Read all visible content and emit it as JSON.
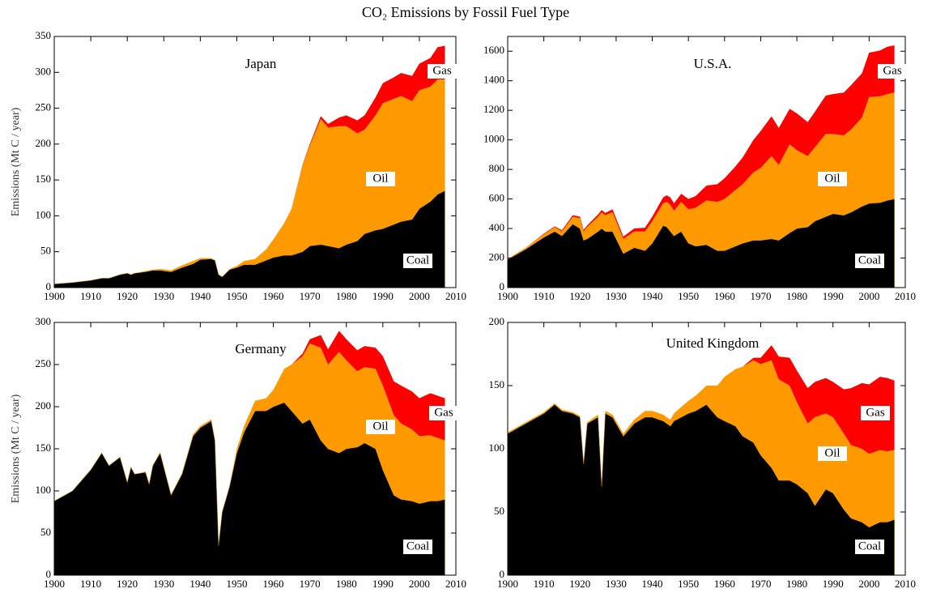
{
  "title": "CO₂ Emissions by Fossil Fuel Type",
  "chart_data": [
    {
      "type": "stacked-area",
      "title": "Japan",
      "y_label": "Emissions (Mt C / year)",
      "x": [
        1900,
        1905,
        1910,
        1913,
        1915,
        1918,
        1920,
        1921,
        1922,
        1925,
        1926,
        1927,
        1929,
        1932,
        1935,
        1938,
        1940,
        1943,
        1944,
        1945,
        1946,
        1948,
        1950,
        1952,
        1955,
        1958,
        1960,
        1963,
        1965,
        1968,
        1970,
        1973,
        1975,
        1978,
        1980,
        1983,
        1985,
        1988,
        1990,
        1993,
        1995,
        1998,
        2000,
        2003,
        2005,
        2007
      ],
      "series": [
        {
          "name": "Coal",
          "color": "#000000",
          "values": [
            5,
            7,
            10,
            13,
            13,
            18,
            20,
            18,
            20,
            22,
            23,
            24,
            24,
            22,
            28,
            33,
            39,
            40,
            38,
            18,
            15,
            25,
            28,
            32,
            32,
            38,
            42,
            45,
            45,
            50,
            58,
            60,
            58,
            55,
            60,
            65,
            75,
            80,
            82,
            88,
            92,
            95,
            110,
            120,
            130,
            135
          ]
        },
        {
          "name": "Oil",
          "color": "#ff9900",
          "values": [
            0,
            0,
            0,
            0,
            0,
            0,
            0,
            0,
            0,
            1,
            1,
            1,
            2,
            2,
            3,
            4,
            2,
            1,
            0,
            0,
            0,
            1,
            2,
            5,
            8,
            15,
            25,
            45,
            65,
            120,
            140,
            175,
            165,
            170,
            165,
            150,
            145,
            160,
            175,
            175,
            175,
            165,
            165,
            160,
            160,
            155
          ]
        },
        {
          "name": "Gas",
          "color": "#ff0000",
          "values": [
            0,
            0,
            0,
            0,
            0,
            0,
            0,
            0,
            0,
            0,
            0,
            0,
            0,
            0,
            0,
            0,
            0,
            0,
            0,
            0,
            0,
            0,
            0,
            0,
            0,
            0,
            0,
            0,
            0,
            1,
            2,
            4,
            5,
            12,
            15,
            18,
            20,
            25,
            28,
            30,
            32,
            35,
            37,
            40,
            45,
            47
          ]
        }
      ],
      "xlim": [
        1900,
        2010
      ],
      "xticks": [
        1900,
        1910,
        1920,
        1930,
        1940,
        1950,
        1960,
        1970,
        1980,
        1990,
        2000,
        2010
      ],
      "ylim": [
        0,
        350
      ],
      "yticks": [
        0,
        50,
        100,
        150,
        200,
        250,
        300,
        350
      ]
    },
    {
      "type": "stacked-area",
      "title": "U.S.A.",
      "x": [
        1900,
        1905,
        1910,
        1913,
        1915,
        1918,
        1920,
        1921,
        1922,
        1925,
        1926,
        1927,
        1929,
        1932,
        1935,
        1938,
        1940,
        1943,
        1944,
        1945,
        1946,
        1948,
        1950,
        1952,
        1955,
        1958,
        1960,
        1963,
        1965,
        1968,
        1970,
        1973,
        1975,
        1978,
        1980,
        1983,
        1985,
        1988,
        1990,
        1993,
        1995,
        1998,
        2000,
        2003,
        2005,
        2007
      ],
      "series": [
        {
          "name": "Coal",
          "color": "#000000",
          "values": [
            190,
            260,
            340,
            380,
            350,
            430,
            400,
            320,
            330,
            380,
            400,
            380,
            380,
            230,
            270,
            250,
            300,
            420,
            410,
            380,
            350,
            380,
            300,
            280,
            290,
            250,
            250,
            280,
            300,
            320,
            320,
            330,
            320,
            370,
            400,
            410,
            450,
            480,
            500,
            490,
            510,
            550,
            570,
            575,
            590,
            600
          ]
        },
        {
          "name": "Oil",
          "color": "#ff9900",
          "values": [
            5,
            10,
            20,
            30,
            30,
            50,
            70,
            60,
            80,
            100,
            110,
            110,
            130,
            100,
            110,
            130,
            150,
            150,
            170,
            180,
            170,
            200,
            230,
            260,
            300,
            330,
            350,
            380,
            400,
            460,
            490,
            560,
            510,
            600,
            530,
            480,
            500,
            560,
            540,
            540,
            560,
            600,
            720,
            720,
            720,
            720
          ]
        },
        {
          "name": "Gas",
          "color": "#ff0000",
          "values": [
            0,
            0,
            5,
            5,
            8,
            10,
            10,
            10,
            10,
            15,
            15,
            15,
            20,
            15,
            20,
            25,
            30,
            40,
            45,
            50,
            50,
            55,
            70,
            80,
            100,
            120,
            140,
            160,
            180,
            220,
            250,
            270,
            250,
            240,
            250,
            230,
            240,
            260,
            270,
            290,
            300,
            300,
            300,
            310,
            320,
            320
          ]
        }
      ],
      "xlim": [
        1900,
        2010
      ],
      "xticks": [
        1900,
        1910,
        1920,
        1930,
        1940,
        1950,
        1960,
        1970,
        1980,
        1990,
        2000,
        2010
      ],
      "ylim": [
        0,
        1700
      ],
      "yticks": [
        0,
        200,
        400,
        600,
        800,
        1000,
        1200,
        1400,
        1600
      ]
    },
    {
      "type": "stacked-area",
      "title": "Germany",
      "y_label": "Emissions (Mt C / year)",
      "x": [
        1900,
        1905,
        1910,
        1913,
        1915,
        1918,
        1920,
        1921,
        1922,
        1925,
        1926,
        1927,
        1929,
        1932,
        1935,
        1938,
        1940,
        1943,
        1944,
        1945,
        1946,
        1948,
        1950,
        1952,
        1955,
        1958,
        1960,
        1963,
        1965,
        1968,
        1970,
        1973,
        1975,
        1978,
        1980,
        1983,
        1985,
        1988,
        1990,
        1993,
        1995,
        1998,
        2000,
        2003,
        2005,
        2007
      ],
      "series": [
        {
          "name": "Coal",
          "color": "#000000",
          "values": [
            88,
            100,
            125,
            145,
            130,
            140,
            110,
            128,
            120,
            122,
            108,
            130,
            145,
            95,
            120,
            165,
            175,
            183,
            160,
            35,
            75,
            105,
            145,
            170,
            195,
            195,
            200,
            205,
            195,
            180,
            185,
            160,
            150,
            145,
            150,
            152,
            157,
            150,
            125,
            95,
            90,
            88,
            85,
            88,
            88,
            90
          ]
        },
        {
          "name": "Oil",
          "color": "#ff9900",
          "values": [
            0,
            0,
            0,
            0,
            0,
            0,
            0,
            0,
            0,
            1,
            1,
            1,
            1,
            1,
            1,
            2,
            2,
            2,
            1,
            0,
            0,
            1,
            5,
            7,
            12,
            15,
            20,
            40,
            55,
            80,
            90,
            110,
            100,
            120,
            105,
            90,
            90,
            95,
            100,
            95,
            90,
            85,
            80,
            78,
            75,
            70
          ]
        },
        {
          "name": "Gas",
          "color": "#ff0000",
          "values": [
            0,
            0,
            0,
            0,
            0,
            0,
            0,
            0,
            0,
            0,
            0,
            0,
            0,
            0,
            0,
            0,
            0,
            0,
            0,
            0,
            0,
            0,
            0,
            0,
            0,
            0,
            0,
            0,
            0,
            3,
            5,
            15,
            18,
            25,
            25,
            25,
            25,
            25,
            35,
            40,
            45,
            45,
            45,
            50,
            50,
            50
          ]
        }
      ],
      "xlim": [
        1900,
        2010
      ],
      "xticks": [
        1900,
        1910,
        1920,
        1930,
        1940,
        1950,
        1960,
        1970,
        1980,
        1990,
        2000,
        2010
      ],
      "ylim": [
        0,
        300
      ],
      "yticks": [
        0,
        50,
        100,
        150,
        200,
        250,
        300
      ]
    },
    {
      "type": "stacked-area",
      "title": "United Kingdom",
      "x": [
        1900,
        1905,
        1910,
        1913,
        1915,
        1918,
        1920,
        1921,
        1922,
        1925,
        1926,
        1927,
        1929,
        1932,
        1935,
        1938,
        1940,
        1943,
        1944,
        1945,
        1946,
        1948,
        1950,
        1952,
        1955,
        1958,
        1960,
        1963,
        1965,
        1968,
        1970,
        1973,
        1975,
        1978,
        1980,
        1983,
        1985,
        1988,
        1990,
        1993,
        1995,
        1998,
        2000,
        2003,
        2005,
        2007
      ],
      "series": [
        {
          "name": "Coal",
          "color": "#000000",
          "values": [
            112,
            120,
            128,
            135,
            130,
            128,
            125,
            88,
            120,
            125,
            70,
            128,
            125,
            110,
            120,
            125,
            125,
            122,
            120,
            118,
            122,
            125,
            128,
            130,
            135,
            125,
            122,
            118,
            110,
            105,
            95,
            85,
            75,
            75,
            72,
            65,
            55,
            68,
            65,
            52,
            45,
            42,
            38,
            42,
            42,
            44
          ]
        },
        {
          "name": "Oil",
          "color": "#ff9900",
          "values": [
            1,
            1,
            1,
            1,
            1,
            1,
            1,
            1,
            1,
            2,
            2,
            2,
            2,
            2,
            3,
            5,
            5,
            5,
            5,
            5,
            6,
            8,
            10,
            12,
            15,
            25,
            35,
            45,
            55,
            65,
            72,
            85,
            80,
            75,
            65,
            55,
            70,
            60,
            60,
            60,
            58,
            58,
            58,
            57,
            56,
            55
          ]
        },
        {
          "name": "Gas",
          "color": "#ff0000",
          "values": [
            0,
            0,
            0,
            0,
            0,
            0,
            0,
            0,
            0,
            0,
            0,
            0,
            0,
            0,
            0,
            0,
            0,
            0,
            0,
            0,
            0,
            0,
            0,
            0,
            0,
            0,
            0,
            0,
            0,
            2,
            5,
            12,
            18,
            22,
            25,
            28,
            28,
            28,
            28,
            35,
            45,
            52,
            55,
            58,
            58,
            55
          ]
        }
      ],
      "xlim": [
        1900,
        2010
      ],
      "xticks": [
        1900,
        1910,
        1920,
        1930,
        1940,
        1950,
        1960,
        1970,
        1980,
        1990,
        2000,
        2010
      ],
      "ylim": [
        0,
        200
      ],
      "yticks": [
        0,
        50,
        100,
        150,
        200
      ]
    }
  ]
}
